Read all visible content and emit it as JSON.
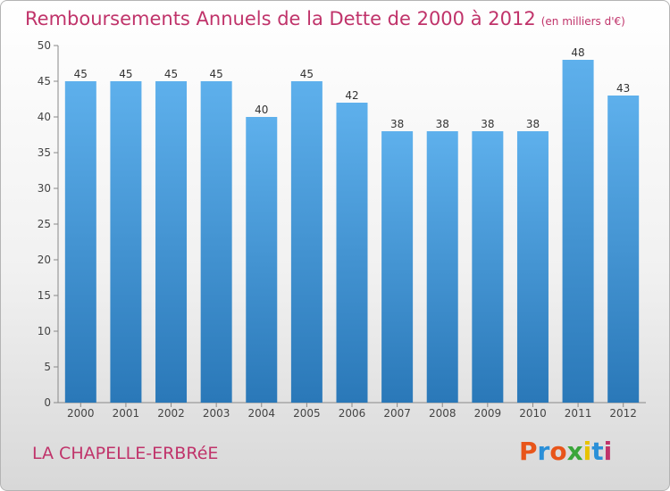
{
  "title": "Remboursements Annuels de la Dette de 2000 à 2012",
  "unit": "(en milliers d'€)",
  "commune": "LA CHAPELLE-ERBRéE",
  "logo": {
    "text": "Proxiti",
    "colors": [
      "#e8551a",
      "#2a8fd8",
      "#e8551a",
      "#3aa63a",
      "#e8c200",
      "#2a8fd8",
      "#c0336a"
    ]
  },
  "colors": {
    "accent": "#c0336a",
    "bar_light": "#5eb0ec",
    "bar_dark": "#2a78b8"
  },
  "chart_data": {
    "type": "bar",
    "title": "Remboursements Annuels de la Dette de 2000 à 2012",
    "xlabel": "",
    "ylabel": "",
    "categories": [
      "2000",
      "2001",
      "2002",
      "2003",
      "2004",
      "2005",
      "2006",
      "2007",
      "2008",
      "2009",
      "2010",
      "2011",
      "2012"
    ],
    "values": [
      45,
      45,
      45,
      45,
      40,
      45,
      42,
      38,
      38,
      38,
      38,
      48,
      43
    ],
    "ylim": [
      0,
      50
    ],
    "yticks": [
      0,
      5,
      10,
      15,
      20,
      25,
      30,
      35,
      40,
      45,
      50
    ],
    "grid": false,
    "data_labels": true
  }
}
